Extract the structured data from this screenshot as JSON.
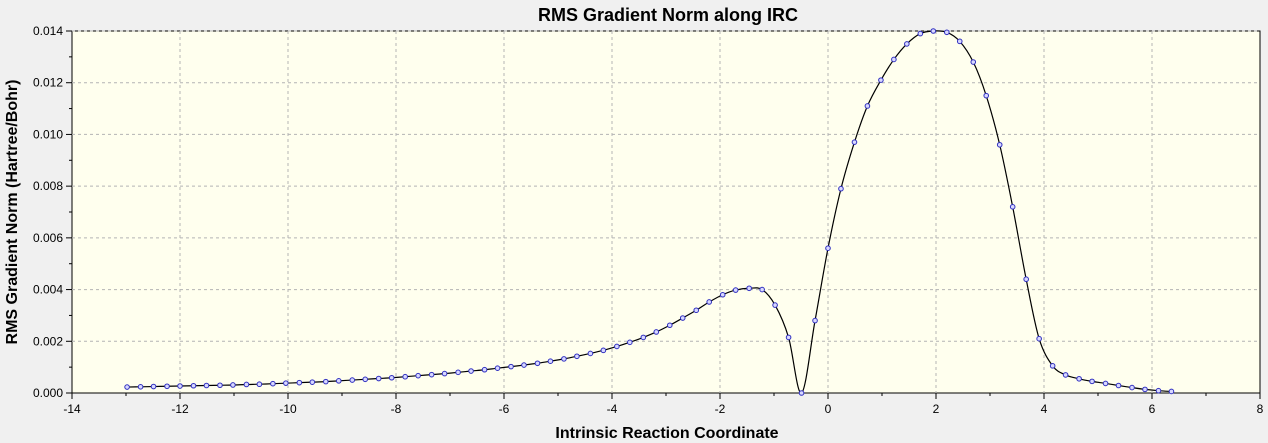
{
  "chart_data": {
    "type": "line",
    "title": "RMS Gradient Norm along IRC",
    "xlabel": "Intrinsic Reaction Coordinate",
    "ylabel": "RMS Gradient Norm (Hartree/Bohr)",
    "xlim": [
      -14,
      8
    ],
    "ylim": [
      0,
      0.014
    ],
    "xticks": [
      -14,
      -12,
      -10,
      -8,
      -6,
      -4,
      -2,
      0,
      2,
      4,
      6,
      8
    ],
    "yticks": [
      "0.000",
      "0.002",
      "0.004",
      "0.006",
      "0.008",
      "0.010",
      "0.012",
      "0.014"
    ],
    "grid": true,
    "legend": "none",
    "colors": {
      "plot_background": "#ffffee",
      "line": "#000000",
      "marker_stroke": "#3030c0",
      "marker_fill": "#d8d8ff",
      "grid": "#b4b4b4"
    },
    "x": [
      -12.98,
      -12.73,
      -12.49,
      -12.24,
      -12.0,
      -11.75,
      -11.51,
      -11.26,
      -11.02,
      -10.77,
      -10.53,
      -10.28,
      -10.04,
      -9.79,
      -9.55,
      -9.3,
      -9.06,
      -8.81,
      -8.57,
      -8.32,
      -8.08,
      -7.83,
      -7.59,
      -7.34,
      -7.1,
      -6.85,
      -6.61,
      -6.36,
      -6.12,
      -5.87,
      -5.63,
      -5.38,
      -5.14,
      -4.89,
      -4.65,
      -4.4,
      -4.16,
      -3.91,
      -3.67,
      -3.42,
      -3.18,
      -2.93,
      -2.69,
      -2.44,
      -2.2,
      -1.95,
      -1.71,
      -1.46,
      -1.22,
      -0.98,
      -0.73,
      -0.49,
      -0.24,
      0.0,
      0.24,
      0.49,
      0.73,
      0.98,
      1.22,
      1.46,
      1.71,
      1.95,
      2.2,
      2.44,
      2.69,
      2.93,
      3.18,
      3.42,
      3.67,
      3.91,
      4.16,
      4.4,
      4.65,
      4.89,
      5.14,
      5.38,
      5.63,
      5.87,
      6.12,
      6.36
    ],
    "values": [
      0.00023,
      0.00024,
      0.00025,
      0.00026,
      0.00027,
      0.00028,
      0.00029,
      0.0003,
      0.00031,
      0.00033,
      0.00034,
      0.00036,
      0.00038,
      0.0004,
      0.00042,
      0.00044,
      0.00047,
      0.0005,
      0.00053,
      0.00056,
      0.00059,
      0.00063,
      0.00067,
      0.00071,
      0.00075,
      0.0008,
      0.00085,
      0.0009,
      0.00096,
      0.00102,
      0.00108,
      0.00115,
      0.00123,
      0.00132,
      0.00142,
      0.00153,
      0.00165,
      0.0018,
      0.00196,
      0.00215,
      0.00236,
      0.00262,
      0.0029,
      0.0032,
      0.00352,
      0.0038,
      0.00398,
      0.00405,
      0.004,
      0.0034,
      0.00215,
      0.0,
      0.0028,
      0.0056,
      0.0079,
      0.0097,
      0.0111,
      0.0121,
      0.0129,
      0.0135,
      0.0139,
      0.014,
      0.01395,
      0.0136,
      0.0128,
      0.0115,
      0.0096,
      0.0072,
      0.0044,
      0.0021,
      0.00105,
      0.0007,
      0.00055,
      0.00045,
      0.00037,
      0.00029,
      0.00021,
      0.00014,
      9e-05,
      6e-05
    ]
  }
}
